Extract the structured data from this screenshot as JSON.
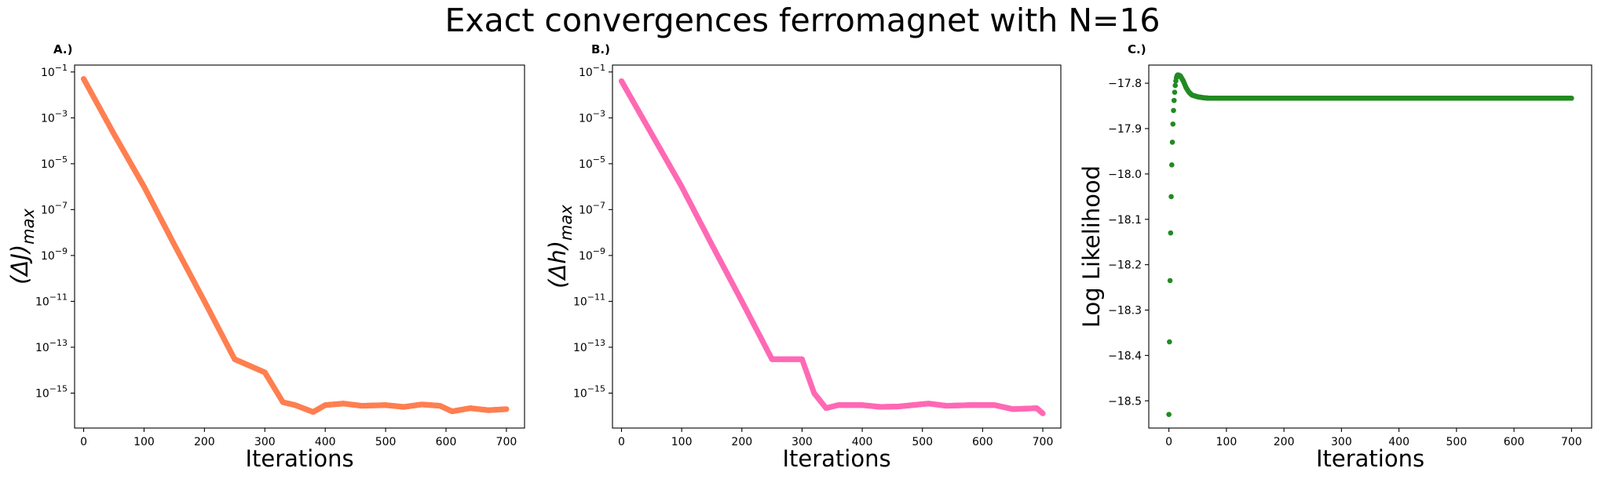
{
  "title": "Exact convergences ferromagnet with N=16",
  "chart_data": [
    {
      "type": "scatter",
      "panel_label": "A.)",
      "xlabel": "Iterations",
      "ylabel": "(ΔJ)",
      "ylabel_sub": "max",
      "yscale": "log",
      "xlim": [
        -15,
        730
      ],
      "ylim": [
        3e-17,
        0.2
      ],
      "xticks": [
        0,
        100,
        200,
        300,
        400,
        500,
        600,
        700
      ],
      "yticks": [
        {
          "base": "10",
          "exp": "−1",
          "value": 0.1
        },
        {
          "base": "10",
          "exp": "−3",
          "value": 0.001
        },
        {
          "base": "10",
          "exp": "−5",
          "value": 1e-05
        },
        {
          "base": "10",
          "exp": "−7",
          "value": 1e-07
        },
        {
          "base": "10",
          "exp": "−9",
          "value": 1e-09
        },
        {
          "base": "10",
          "exp": "−11",
          "value": 1e-11
        },
        {
          "base": "10",
          "exp": "−13",
          "value": 1e-13
        },
        {
          "base": "10",
          "exp": "−15",
          "value": 1e-15
        }
      ],
      "color": "#ff7f50",
      "series": [
        {
          "values": [
            [
              0,
              0.05
            ],
            [
              50,
              0.0002
            ],
            [
              100,
              1e-06
            ],
            [
              150,
              3e-09
            ],
            [
              200,
              1e-11
            ],
            [
              250,
              3e-14
            ],
            [
              300,
              8e-15
            ],
            [
              330,
              4e-16
            ],
            [
              350,
              3e-16
            ],
            [
              380,
              1.5e-16
            ],
            [
              400,
              3e-16
            ],
            [
              430,
              3.5e-16
            ],
            [
              460,
              2.8e-16
            ],
            [
              500,
              3e-16
            ],
            [
              530,
              2.5e-16
            ],
            [
              560,
              3.2e-16
            ],
            [
              590,
              2.8e-16
            ],
            [
              610,
              1.6e-16
            ],
            [
              640,
              2.2e-16
            ],
            [
              670,
              1.8e-16
            ],
            [
              700,
              2e-16
            ]
          ]
        }
      ]
    },
    {
      "type": "scatter",
      "panel_label": "B.)",
      "xlabel": "Iterations",
      "ylabel": "(Δh)",
      "ylabel_sub": "max",
      "yscale": "log",
      "xlim": [
        -15,
        730
      ],
      "ylim": [
        3e-17,
        0.2
      ],
      "xticks": [
        0,
        100,
        200,
        300,
        400,
        500,
        600,
        700
      ],
      "yticks": [
        {
          "base": "10",
          "exp": "−1",
          "value": 0.1
        },
        {
          "base": "10",
          "exp": "−3",
          "value": 0.001
        },
        {
          "base": "10",
          "exp": "−5",
          "value": 1e-05
        },
        {
          "base": "10",
          "exp": "−7",
          "value": 1e-07
        },
        {
          "base": "10",
          "exp": "−9",
          "value": 1e-09
        },
        {
          "base": "10",
          "exp": "−11",
          "value": 1e-11
        },
        {
          "base": "10",
          "exp": "−13",
          "value": 1e-13
        },
        {
          "base": "10",
          "exp": "−15",
          "value": 1e-15
        }
      ],
      "color": "#ff69b4",
      "series": [
        {
          "values": [
            [
              0,
              0.04
            ],
            [
              50,
              0.0002
            ],
            [
              100,
              1e-06
            ],
            [
              150,
              3e-09
            ],
            [
              200,
              1e-11
            ],
            [
              250,
              3e-14
            ],
            [
              300,
              3e-14
            ],
            [
              320,
              1e-15
            ],
            [
              340,
              2.2e-16
            ],
            [
              360,
              3e-16
            ],
            [
              400,
              3e-16
            ],
            [
              430,
              2.5e-16
            ],
            [
              460,
              2.6e-16
            ],
            [
              510,
              3.5e-16
            ],
            [
              540,
              2.8e-16
            ],
            [
              580,
              3e-16
            ],
            [
              620,
              3e-16
            ],
            [
              650,
              2e-16
            ],
            [
              690,
              2.2e-16
            ],
            [
              700,
              1.3e-16
            ]
          ]
        }
      ]
    },
    {
      "type": "scatter",
      "panel_label": "C.)",
      "xlabel": "Iterations",
      "ylabel": "Log Likelihood",
      "yscale": "linear",
      "xlim": [
        -35,
        735
      ],
      "ylim": [
        -18.56,
        -17.76
      ],
      "xticks": [
        0,
        100,
        200,
        300,
        400,
        500,
        600,
        700
      ],
      "yticks": [
        {
          "label": "−17.8",
          "value": -17.8
        },
        {
          "label": "−17.9",
          "value": -17.9
        },
        {
          "label": "−18.0",
          "value": -18.0
        },
        {
          "label": "−18.1",
          "value": -18.1
        },
        {
          "label": "−18.2",
          "value": -18.2
        },
        {
          "label": "−18.3",
          "value": -18.3
        },
        {
          "label": "−18.4",
          "value": -18.4
        },
        {
          "label": "−18.5",
          "value": -18.5
        }
      ],
      "color": "#228b22",
      "series": [
        {
          "values": [
            [
              0,
              -18.53
            ],
            [
              1,
              -18.37
            ],
            [
              2,
              -18.235
            ],
            [
              3,
              -18.13
            ],
            [
              4,
              -18.05
            ],
            [
              5,
              -17.98
            ],
            [
              6,
              -17.93
            ],
            [
              7,
              -17.89
            ],
            [
              8,
              -17.86
            ],
            [
              9,
              -17.838
            ],
            [
              10,
              -17.82
            ],
            [
              11,
              -17.805
            ],
            [
              12,
              -17.795
            ],
            [
              13,
              -17.788
            ],
            [
              14,
              -17.784
            ],
            [
              15,
              -17.782
            ],
            [
              17,
              -17.782
            ],
            [
              20,
              -17.784
            ],
            [
              25,
              -17.795
            ],
            [
              30,
              -17.81
            ],
            [
              35,
              -17.82
            ],
            [
              40,
              -17.826
            ],
            [
              50,
              -17.83
            ],
            [
              60,
              -17.832
            ],
            [
              70,
              -17.833
            ],
            [
              100,
              -17.833
            ],
            [
              200,
              -17.833
            ],
            [
              300,
              -17.833
            ],
            [
              400,
              -17.833
            ],
            [
              500,
              -17.833
            ],
            [
              600,
              -17.833
            ],
            [
              700,
              -17.833
            ]
          ]
        }
      ]
    }
  ]
}
